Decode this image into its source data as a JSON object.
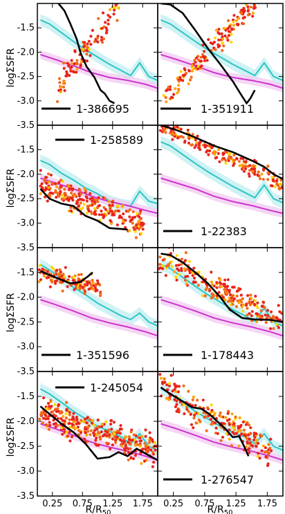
{
  "figure": {
    "ylabel": "logΣSFR",
    "xlabel_main": "R/R",
    "xlabel_sub": "50"
  },
  "chart_data": {
    "type": "scatter",
    "xlim": [
      0.0,
      2.0
    ],
    "ylim": [
      -3.5,
      -1.0
    ],
    "xticks": [
      0.25,
      0.75,
      1.25,
      1.75
    ],
    "yticks": [
      -1.5,
      -2.0,
      -2.5,
      -3.0,
      -3.5
    ],
    "xtick_labels": [
      "0.25",
      "0.75",
      "1.25",
      "1.75"
    ],
    "ytick_labels": [
      "-1.5",
      "-2.0",
      "-2.5",
      "-3.0",
      "-3.5"
    ],
    "colors": {
      "cyan_line": "#2ec4c4",
      "cyan_band": "#bfeef0",
      "magenta_line": "#cc33cc",
      "magenta_band": "#f2c8f2",
      "points": [
        "#e8241c",
        "#f26a1b",
        "#ffa500",
        "#ffd700",
        "#e84a1c"
      ],
      "median_line": "#000000"
    },
    "panels": [
      {
        "id": "1-386695",
        "cyan": [
          [
            0.05,
            -1.34
          ],
          [
            0.2,
            -1.42
          ],
          [
            0.4,
            -1.6
          ],
          [
            0.6,
            -1.78
          ],
          [
            0.8,
            -1.95
          ],
          [
            1.0,
            -2.1
          ],
          [
            1.2,
            -2.25
          ],
          [
            1.4,
            -2.38
          ],
          [
            1.55,
            -2.48
          ],
          [
            1.7,
            -2.22
          ],
          [
            1.85,
            -2.5
          ],
          [
            2.0,
            -2.58
          ]
        ],
        "magenta": [
          [
            0.05,
            -2.05
          ],
          [
            0.3,
            -2.15
          ],
          [
            0.6,
            -2.28
          ],
          [
            0.9,
            -2.42
          ],
          [
            1.2,
            -2.52
          ],
          [
            1.5,
            -2.58
          ],
          [
            1.8,
            -2.66
          ],
          [
            2.0,
            -2.74
          ]
        ],
        "median": [
          [
            0.35,
            -1.0
          ],
          [
            0.45,
            -1.15
          ],
          [
            0.55,
            -1.42
          ],
          [
            0.65,
            -1.72
          ],
          [
            0.72,
            -2.02
          ],
          [
            0.82,
            -2.3
          ],
          [
            0.95,
            -2.52
          ],
          [
            1.05,
            -2.78
          ],
          [
            1.12,
            -2.85
          ],
          [
            1.2,
            -3.0
          ],
          [
            1.28,
            -3.05
          ]
        ],
        "scatter": {
          "x": [
            0.35,
            1.35
          ],
          "y": [
            -2.7,
            -1.1
          ],
          "spread": 0.35,
          "n": 110,
          "seed": 1
        }
      },
      {
        "id": "1-351911",
        "cyan": [
          [
            0.05,
            -1.34
          ],
          [
            0.2,
            -1.42
          ],
          [
            0.4,
            -1.6
          ],
          [
            0.6,
            -1.78
          ],
          [
            0.8,
            -1.95
          ],
          [
            1.0,
            -2.1
          ],
          [
            1.2,
            -2.25
          ],
          [
            1.4,
            -2.38
          ],
          [
            1.55,
            -2.48
          ],
          [
            1.7,
            -2.22
          ],
          [
            1.85,
            -2.5
          ],
          [
            2.0,
            -2.58
          ]
        ],
        "magenta": [
          [
            0.05,
            -2.05
          ],
          [
            0.3,
            -2.15
          ],
          [
            0.6,
            -2.28
          ],
          [
            0.9,
            -2.42
          ],
          [
            1.2,
            -2.52
          ],
          [
            1.5,
            -2.58
          ],
          [
            1.8,
            -2.66
          ],
          [
            2.0,
            -2.74
          ]
        ],
        "median": [
          [
            0.05,
            -1.0
          ],
          [
            0.2,
            -1.02
          ],
          [
            0.4,
            -1.2
          ],
          [
            0.6,
            -1.55
          ],
          [
            0.8,
            -1.92
          ],
          [
            1.0,
            -2.25
          ],
          [
            1.2,
            -2.6
          ],
          [
            1.32,
            -2.85
          ],
          [
            1.42,
            -3.05
          ],
          [
            1.48,
            -2.95
          ],
          [
            1.55,
            -2.78
          ]
        ],
        "scatter": {
          "x": [
            0.1,
            1.55
          ],
          "y": [
            -2.95,
            -1.0
          ],
          "spread": 0.28,
          "n": 160,
          "seed": 2
        }
      },
      {
        "id": "1-258589",
        "cyan": [
          [
            0.05,
            -1.72
          ],
          [
            0.2,
            -1.8
          ],
          [
            0.4,
            -1.98
          ],
          [
            0.6,
            -2.12
          ],
          [
            0.8,
            -2.28
          ],
          [
            1.0,
            -2.4
          ],
          [
            1.2,
            -2.55
          ],
          [
            1.4,
            -2.62
          ],
          [
            1.55,
            -2.65
          ],
          [
            1.7,
            -2.35
          ],
          [
            1.85,
            -2.55
          ],
          [
            2.0,
            -2.6
          ]
        ],
        "magenta": [
          [
            0.05,
            -2.08
          ],
          [
            0.3,
            -2.18
          ],
          [
            0.6,
            -2.3
          ],
          [
            0.9,
            -2.45
          ],
          [
            1.2,
            -2.56
          ],
          [
            1.5,
            -2.64
          ],
          [
            1.8,
            -2.74
          ],
          [
            2.0,
            -2.8
          ]
        ],
        "median": [
          [
            0.05,
            -2.3
          ],
          [
            0.2,
            -2.5
          ],
          [
            0.4,
            -2.6
          ],
          [
            0.6,
            -2.65
          ],
          [
            0.8,
            -2.85
          ],
          [
            1.0,
            -2.95
          ],
          [
            1.2,
            -3.1
          ],
          [
            1.4,
            -3.12
          ],
          [
            1.5,
            -3.13
          ]
        ],
        "scatter": {
          "x": [
            0.05,
            1.75
          ],
          "y": [
            -2.2,
            -3.05
          ],
          "spread": 0.33,
          "n": 260,
          "seed": 3
        }
      },
      {
        "id": "1-22383",
        "cyan": [
          [
            0.05,
            -1.34
          ],
          [
            0.2,
            -1.42
          ],
          [
            0.4,
            -1.6
          ],
          [
            0.6,
            -1.78
          ],
          [
            0.8,
            -1.95
          ],
          [
            1.0,
            -2.1
          ],
          [
            1.2,
            -2.25
          ],
          [
            1.4,
            -2.38
          ],
          [
            1.55,
            -2.48
          ],
          [
            1.7,
            -2.22
          ],
          [
            1.85,
            -2.5
          ],
          [
            2.0,
            -2.58
          ]
        ],
        "magenta": [
          [
            0.05,
            -2.08
          ],
          [
            0.3,
            -2.18
          ],
          [
            0.6,
            -2.3
          ],
          [
            0.9,
            -2.45
          ],
          [
            1.2,
            -2.56
          ],
          [
            1.5,
            -2.64
          ],
          [
            1.8,
            -2.74
          ],
          [
            2.0,
            -2.8
          ]
        ],
        "median": [
          [
            0.05,
            -1.0
          ],
          [
            0.3,
            -1.1
          ],
          [
            0.6,
            -1.25
          ],
          [
            0.9,
            -1.42
          ],
          [
            1.2,
            -1.55
          ],
          [
            1.5,
            -1.72
          ],
          [
            1.7,
            -1.85
          ],
          [
            1.85,
            -2.0
          ],
          [
            2.0,
            -2.1
          ]
        ],
        "scatter": {
          "x": [
            0.05,
            2.0
          ],
          "y": [
            -1.0,
            -2.2
          ],
          "spread": 0.2,
          "n": 200,
          "seed": 4
        }
      },
      {
        "id": "1-351596",
        "cyan": [
          [
            0.05,
            -1.34
          ],
          [
            0.2,
            -1.45
          ],
          [
            0.4,
            -1.62
          ],
          [
            0.6,
            -1.8
          ],
          [
            0.8,
            -1.95
          ],
          [
            1.0,
            -2.12
          ],
          [
            1.2,
            -2.25
          ],
          [
            1.4,
            -2.38
          ],
          [
            1.55,
            -2.45
          ],
          [
            1.7,
            -2.32
          ],
          [
            1.85,
            -2.5
          ],
          [
            2.0,
            -2.58
          ]
        ],
        "magenta": [
          [
            0.05,
            -2.05
          ],
          [
            0.3,
            -2.15
          ],
          [
            0.6,
            -2.28
          ],
          [
            0.9,
            -2.42
          ],
          [
            1.2,
            -2.52
          ],
          [
            1.5,
            -2.6
          ],
          [
            1.8,
            -2.7
          ],
          [
            2.0,
            -2.78
          ]
        ],
        "median": [
          [
            0.05,
            -1.47
          ],
          [
            0.2,
            -1.55
          ],
          [
            0.4,
            -1.65
          ],
          [
            0.55,
            -1.72
          ],
          [
            0.7,
            -1.7
          ],
          [
            0.82,
            -1.6
          ],
          [
            0.92,
            -1.5
          ]
        ],
        "scatter": {
          "x": [
            0.05,
            1.05
          ],
          "y": [
            -1.5,
            -1.85
          ],
          "spread": 0.28,
          "n": 140,
          "seed": 5
        }
      },
      {
        "id": "1-178443",
        "cyan": [
          [
            0.05,
            -1.34
          ],
          [
            0.2,
            -1.42
          ],
          [
            0.4,
            -1.6
          ],
          [
            0.6,
            -1.78
          ],
          [
            0.8,
            -1.95
          ],
          [
            1.0,
            -2.1
          ],
          [
            1.2,
            -2.25
          ],
          [
            1.4,
            -2.38
          ],
          [
            1.55,
            -2.48
          ],
          [
            1.7,
            -2.22
          ],
          [
            1.85,
            -2.5
          ],
          [
            2.0,
            -2.58
          ]
        ],
        "magenta": [
          [
            0.05,
            -2.05
          ],
          [
            0.3,
            -2.15
          ],
          [
            0.6,
            -2.28
          ],
          [
            0.9,
            -2.42
          ],
          [
            1.2,
            -2.52
          ],
          [
            1.5,
            -2.6
          ],
          [
            1.8,
            -2.7
          ],
          [
            2.0,
            -2.78
          ]
        ],
        "median": [
          [
            0.05,
            -1.12
          ],
          [
            0.2,
            -1.15
          ],
          [
            0.4,
            -1.3
          ],
          [
            0.6,
            -1.5
          ],
          [
            0.8,
            -1.72
          ],
          [
            1.0,
            -2.0
          ],
          [
            1.15,
            -2.25
          ],
          [
            1.35,
            -2.42
          ],
          [
            1.55,
            -2.45
          ],
          [
            1.8,
            -2.46
          ],
          [
            2.0,
            -2.5
          ]
        ],
        "scatter": {
          "x": [
            0.05,
            2.0
          ],
          "y": [
            -1.2,
            -2.5
          ],
          "spread": 0.35,
          "n": 230,
          "seed": 6
        }
      },
      {
        "id": "1-245054",
        "cyan": [
          [
            0.05,
            -1.35
          ],
          [
            0.2,
            -1.45
          ],
          [
            0.4,
            -1.62
          ],
          [
            0.6,
            -1.8
          ],
          [
            0.8,
            -1.95
          ],
          [
            1.0,
            -2.1
          ],
          [
            1.2,
            -2.2
          ],
          [
            1.4,
            -2.32
          ],
          [
            1.55,
            -2.45
          ],
          [
            1.7,
            -2.25
          ],
          [
            1.85,
            -2.5
          ],
          [
            2.0,
            -2.58
          ]
        ],
        "magenta": [
          [
            0.05,
            -2.05
          ],
          [
            0.3,
            -2.15
          ],
          [
            0.6,
            -2.28
          ],
          [
            0.9,
            -2.42
          ],
          [
            1.2,
            -2.52
          ],
          [
            1.5,
            -2.6
          ],
          [
            1.8,
            -2.7
          ],
          [
            2.0,
            -2.78
          ]
        ],
        "median": [
          [
            0.05,
            -1.7
          ],
          [
            0.2,
            -1.85
          ],
          [
            0.4,
            -2.05
          ],
          [
            0.6,
            -2.22
          ],
          [
            0.8,
            -2.45
          ],
          [
            1.0,
            -2.75
          ],
          [
            1.2,
            -2.72
          ],
          [
            1.35,
            -2.62
          ],
          [
            1.5,
            -2.7
          ],
          [
            1.65,
            -2.55
          ],
          [
            1.8,
            -2.65
          ],
          [
            2.0,
            -2.78
          ]
        ],
        "scatter": {
          "x": [
            0.05,
            2.0
          ],
          "y": [
            -1.8,
            -2.6
          ],
          "spread": 0.38,
          "n": 330,
          "seed": 7
        }
      },
      {
        "id": "1-276547",
        "cyan": [
          [
            0.05,
            -1.34
          ],
          [
            0.2,
            -1.45
          ],
          [
            0.4,
            -1.62
          ],
          [
            0.6,
            -1.8
          ],
          [
            0.8,
            -1.95
          ],
          [
            1.0,
            -2.1
          ],
          [
            1.2,
            -2.22
          ],
          [
            1.4,
            -2.32
          ],
          [
            1.55,
            -2.45
          ],
          [
            1.7,
            -2.25
          ],
          [
            1.85,
            -2.5
          ],
          [
            2.0,
            -2.58
          ]
        ],
        "magenta": [
          [
            0.05,
            -2.05
          ],
          [
            0.3,
            -2.15
          ],
          [
            0.6,
            -2.28
          ],
          [
            0.9,
            -2.42
          ],
          [
            1.2,
            -2.52
          ],
          [
            1.5,
            -2.6
          ],
          [
            1.8,
            -2.7
          ],
          [
            2.0,
            -2.78
          ]
        ],
        "median": [
          [
            0.05,
            -1.32
          ],
          [
            0.2,
            -1.45
          ],
          [
            0.4,
            -1.6
          ],
          [
            0.55,
            -1.72
          ],
          [
            0.7,
            -1.75
          ],
          [
            0.82,
            -1.85
          ],
          [
            0.95,
            -2.0
          ],
          [
            1.08,
            -2.15
          ],
          [
            1.2,
            -2.32
          ],
          [
            1.3,
            -2.3
          ],
          [
            1.38,
            -2.5
          ],
          [
            1.45,
            -2.7
          ]
        ],
        "scatter": {
          "x": [
            0.05,
            1.8
          ],
          "y": [
            -1.35,
            -2.55
          ],
          "spread": 0.4,
          "n": 230,
          "seed": 8
        }
      }
    ]
  }
}
